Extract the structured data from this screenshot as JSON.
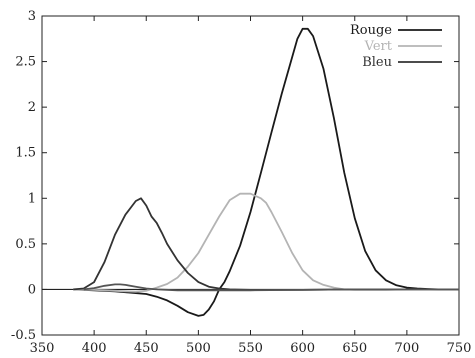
{
  "chart_data": {
    "type": "line",
    "xlim": [
      350,
      750
    ],
    "ylim": [
      -0.5,
      3
    ],
    "xticks": [
      350,
      400,
      450,
      500,
      550,
      600,
      650,
      700,
      750
    ],
    "yticks": [
      -0.5,
      0,
      0.5,
      1,
      1.5,
      2,
      2.5,
      3
    ],
    "xtick_labels": [
      "350",
      "400",
      "450",
      "500",
      "550",
      "600",
      "650",
      "700",
      "750"
    ],
    "ytick_labels": [
      "-0.5",
      "0",
      "0.5",
      "1",
      "1.5",
      "2",
      "2.5",
      "3"
    ],
    "grid": false,
    "legend_position": "top-right",
    "series": [
      {
        "name": "Rouge",
        "color": "#1a1a1a",
        "points": [
          [
            380,
            0
          ],
          [
            390,
            -0.005
          ],
          [
            400,
            -0.01
          ],
          [
            410,
            -0.015
          ],
          [
            420,
            -0.02
          ],
          [
            430,
            -0.03
          ],
          [
            440,
            -0.04
          ],
          [
            450,
            -0.05
          ],
          [
            460,
            -0.08
          ],
          [
            470,
            -0.12
          ],
          [
            480,
            -0.18
          ],
          [
            490,
            -0.25
          ],
          [
            500,
            -0.29
          ],
          [
            505,
            -0.28
          ],
          [
            510,
            -0.22
          ],
          [
            515,
            -0.13
          ],
          [
            520,
            0.0
          ],
          [
            525,
            0.08
          ],
          [
            530,
            0.2
          ],
          [
            540,
            0.48
          ],
          [
            550,
            0.85
          ],
          [
            560,
            1.28
          ],
          [
            570,
            1.72
          ],
          [
            580,
            2.15
          ],
          [
            590,
            2.55
          ],
          [
            595,
            2.75
          ],
          [
            600,
            2.86
          ],
          [
            605,
            2.86
          ],
          [
            610,
            2.78
          ],
          [
            620,
            2.42
          ],
          [
            630,
            1.88
          ],
          [
            640,
            1.28
          ],
          [
            650,
            0.78
          ],
          [
            660,
            0.42
          ],
          [
            670,
            0.21
          ],
          [
            680,
            0.1
          ],
          [
            690,
            0.045
          ],
          [
            700,
            0.02
          ],
          [
            710,
            0.01
          ],
          [
            720,
            0.005
          ],
          [
            730,
            0.0
          ],
          [
            750,
            0.0
          ]
        ]
      },
      {
        "name": "Vert",
        "color": "#b4b4b4",
        "points": [
          [
            380,
            0
          ],
          [
            400,
            -0.005
          ],
          [
            410,
            -0.01
          ],
          [
            420,
            -0.015
          ],
          [
            430,
            -0.02
          ],
          [
            440,
            -0.025
          ],
          [
            450,
            -0.015
          ],
          [
            460,
            0.02
          ],
          [
            470,
            0.06
          ],
          [
            480,
            0.13
          ],
          [
            490,
            0.25
          ],
          [
            500,
            0.4
          ],
          [
            510,
            0.6
          ],
          [
            520,
            0.8
          ],
          [
            530,
            0.98
          ],
          [
            540,
            1.05
          ],
          [
            550,
            1.05
          ],
          [
            560,
            1.0
          ],
          [
            565,
            0.95
          ],
          [
            570,
            0.85
          ],
          [
            580,
            0.63
          ],
          [
            590,
            0.4
          ],
          [
            600,
            0.21
          ],
          [
            610,
            0.1
          ],
          [
            620,
            0.05
          ],
          [
            630,
            0.02
          ],
          [
            640,
            0.0
          ],
          [
            650,
            -0.005
          ],
          [
            680,
            -0.004
          ],
          [
            700,
            0.0
          ],
          [
            750,
            0.0
          ]
        ]
      },
      {
        "name": "Bleu",
        "color": "#333333",
        "points": [
          [
            380,
            0
          ],
          [
            390,
            0.01
          ],
          [
            400,
            0.08
          ],
          [
            410,
            0.3
          ],
          [
            420,
            0.6
          ],
          [
            430,
            0.82
          ],
          [
            440,
            0.97
          ],
          [
            445,
            1.0
          ],
          [
            450,
            0.92
          ],
          [
            455,
            0.8
          ],
          [
            460,
            0.73
          ],
          [
            465,
            0.62
          ],
          [
            470,
            0.5
          ],
          [
            480,
            0.32
          ],
          [
            490,
            0.18
          ],
          [
            500,
            0.08
          ],
          [
            510,
            0.03
          ],
          [
            520,
            0.01
          ],
          [
            530,
            0.0
          ],
          [
            550,
            -0.005
          ],
          [
            600,
            -0.005
          ],
          [
            650,
            0.0
          ],
          [
            750,
            0.0
          ]
        ]
      },
      {
        "name": "",
        "color": "#555555",
        "points": [
          [
            390,
            0.0
          ],
          [
            400,
            0.015
          ],
          [
            410,
            0.04
          ],
          [
            420,
            0.055
          ],
          [
            425,
            0.055
          ],
          [
            430,
            0.05
          ],
          [
            440,
            0.03
          ],
          [
            450,
            0.01
          ],
          [
            460,
            0.0
          ],
          [
            480,
            -0.01
          ],
          [
            500,
            -0.01
          ],
          [
            520,
            -0.01
          ],
          [
            550,
            -0.01
          ],
          [
            600,
            -0.005
          ],
          [
            650,
            0.0
          ],
          [
            750,
            0.0
          ]
        ]
      }
    ]
  }
}
